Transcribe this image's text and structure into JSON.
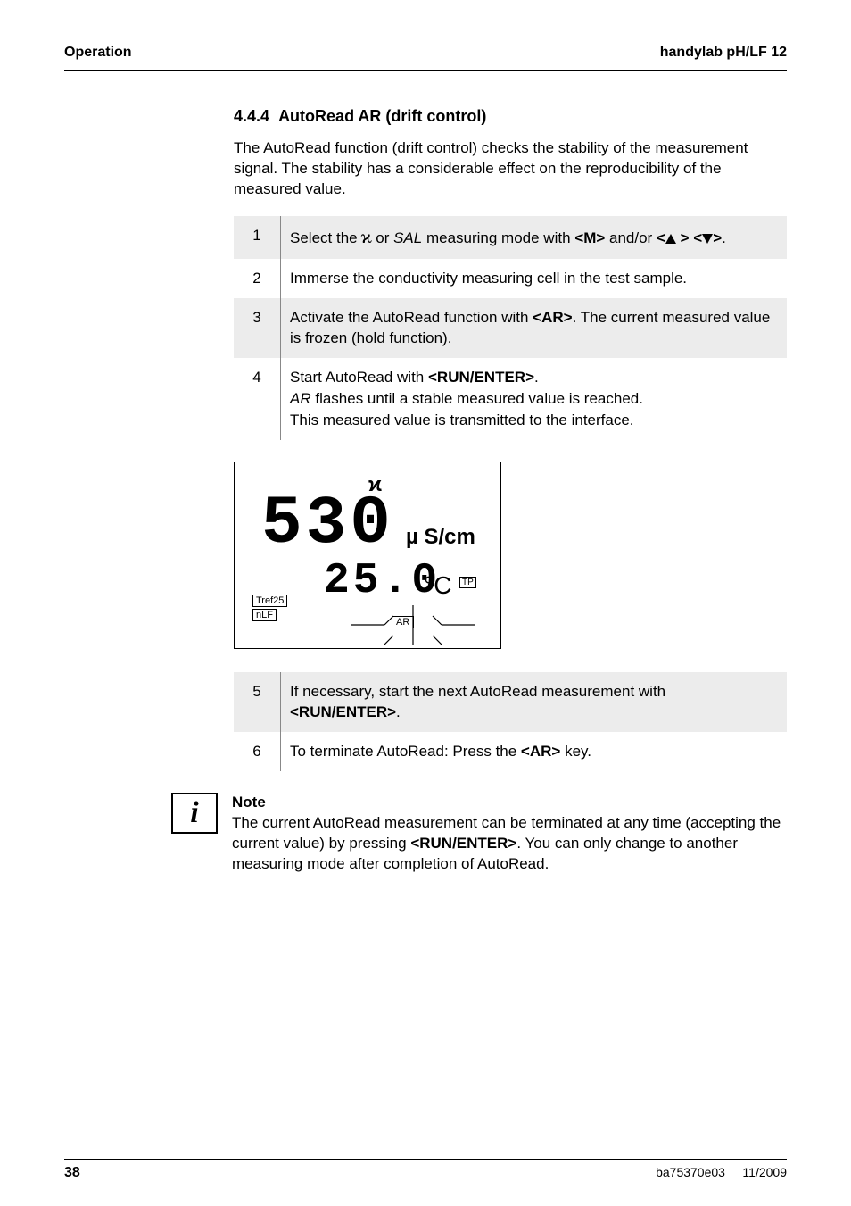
{
  "header": {
    "left": "Operation",
    "right": "handylab pH/LF 12"
  },
  "section": {
    "number": "4.4.4",
    "title": "AutoRead AR (drift control)",
    "intro": "The AutoRead function (drift control) checks the stability of the measurement signal. The stability has a considerable effect on the reproducibility of the measured value."
  },
  "steps_a": [
    {
      "n": "1",
      "shade": true,
      "parts": [
        "Select the ",
        {
          "kappa": "ϰ"
        },
        " or ",
        {
          "i": "SAL"
        },
        " measuring mode with ",
        {
          "b": "<M>"
        },
        " and/or ",
        {
          "b_open": "<"
        },
        {
          "tri": "up"
        },
        {
          "b_close": " >"
        },
        " ",
        {
          "b_open": "<"
        },
        {
          "tri": "down"
        },
        {
          "b_close": ">"
        },
        "."
      ]
    },
    {
      "n": "2",
      "shade": false,
      "parts": [
        "Immerse the conductivity measuring cell in the test sample."
      ]
    },
    {
      "n": "3",
      "shade": true,
      "parts": [
        "Activate the AutoRead function with ",
        {
          "b": "<AR>"
        },
        ". The current measured value is frozen (hold function)."
      ]
    },
    {
      "n": "4",
      "shade": false,
      "parts": [
        "Start AutoRead with ",
        {
          "b": "<RUN/ENTER>"
        },
        ".",
        {
          "br": true
        },
        {
          "i": "AR"
        },
        " flashes until a stable measured value is reached.",
        {
          "br": true
        },
        "This measured value is transmitted to the interface."
      ]
    }
  ],
  "display": {
    "sensor_glyph": "ϰ",
    "main_value": "530",
    "main_unit": "µ S/cm",
    "sub_value": "25.0",
    "sub_unit": "°C",
    "tp": "TP",
    "left_labels": [
      "Tref25",
      "nLF"
    ],
    "ar": "AR"
  },
  "steps_b": [
    {
      "n": "5",
      "shade": true,
      "parts": [
        "If necessary, start the next AutoRead measurement with ",
        {
          "b": "<RUN/ENTER>"
        },
        "."
      ]
    },
    {
      "n": "6",
      "shade": false,
      "parts": [
        "To terminate AutoRead: Press the ",
        {
          "b": "<AR>"
        },
        " key."
      ]
    }
  ],
  "note": {
    "title": "Note",
    "body_parts": [
      "The current AutoRead measurement can be terminated at any time (accepting the current value) by pressing ",
      {
        "b": "<RUN/ENTER>"
      },
      ". You can only change to another measuring mode after completion of AutoRead."
    ]
  },
  "footer": {
    "page": "38",
    "doc": "ba75370e03",
    "date": "11/2009"
  },
  "colors": {
    "bg": "#ffffff",
    "text": "#000000",
    "shade": "#ececec",
    "rule": "#888888"
  }
}
